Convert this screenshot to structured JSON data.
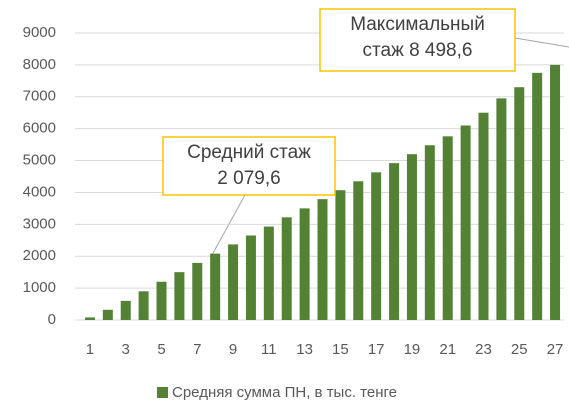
{
  "chart_data": {
    "type": "bar",
    "categories": [
      "1",
      null,
      "3",
      null,
      "5",
      null,
      "7",
      null,
      "9",
      null,
      "11",
      null,
      "13",
      null,
      "15",
      null,
      "17",
      null,
      "19",
      null,
      "21",
      null,
      "23",
      null,
      "25",
      null,
      "27"
    ],
    "series": [
      {
        "name": "Средняя сумма ПН, в тыс. тенге",
        "color": "#548235",
        "values": [
          80,
          320,
          600,
          900,
          1200,
          1500,
          1790,
          2080,
          2370,
          2650,
          2930,
          3220,
          3500,
          3790,
          4070,
          4350,
          4630,
          4920,
          5200,
          5480,
          5760,
          6100,
          6500,
          6950,
          7300,
          7750,
          8000
        ]
      }
    ],
    "ylim": [
      0,
      9000
    ],
    "yticks": [
      0,
      1000,
      2000,
      3000,
      4000,
      5000,
      6000,
      7000,
      8000,
      9000
    ],
    "grid": true,
    "legend": "bottom",
    "annotations": [
      {
        "lines": [
          "Средний стаж",
          "2 079,6"
        ]
      },
      {
        "lines": [
          "Максимальный",
          "стаж 8 498,6"
        ]
      }
    ]
  }
}
